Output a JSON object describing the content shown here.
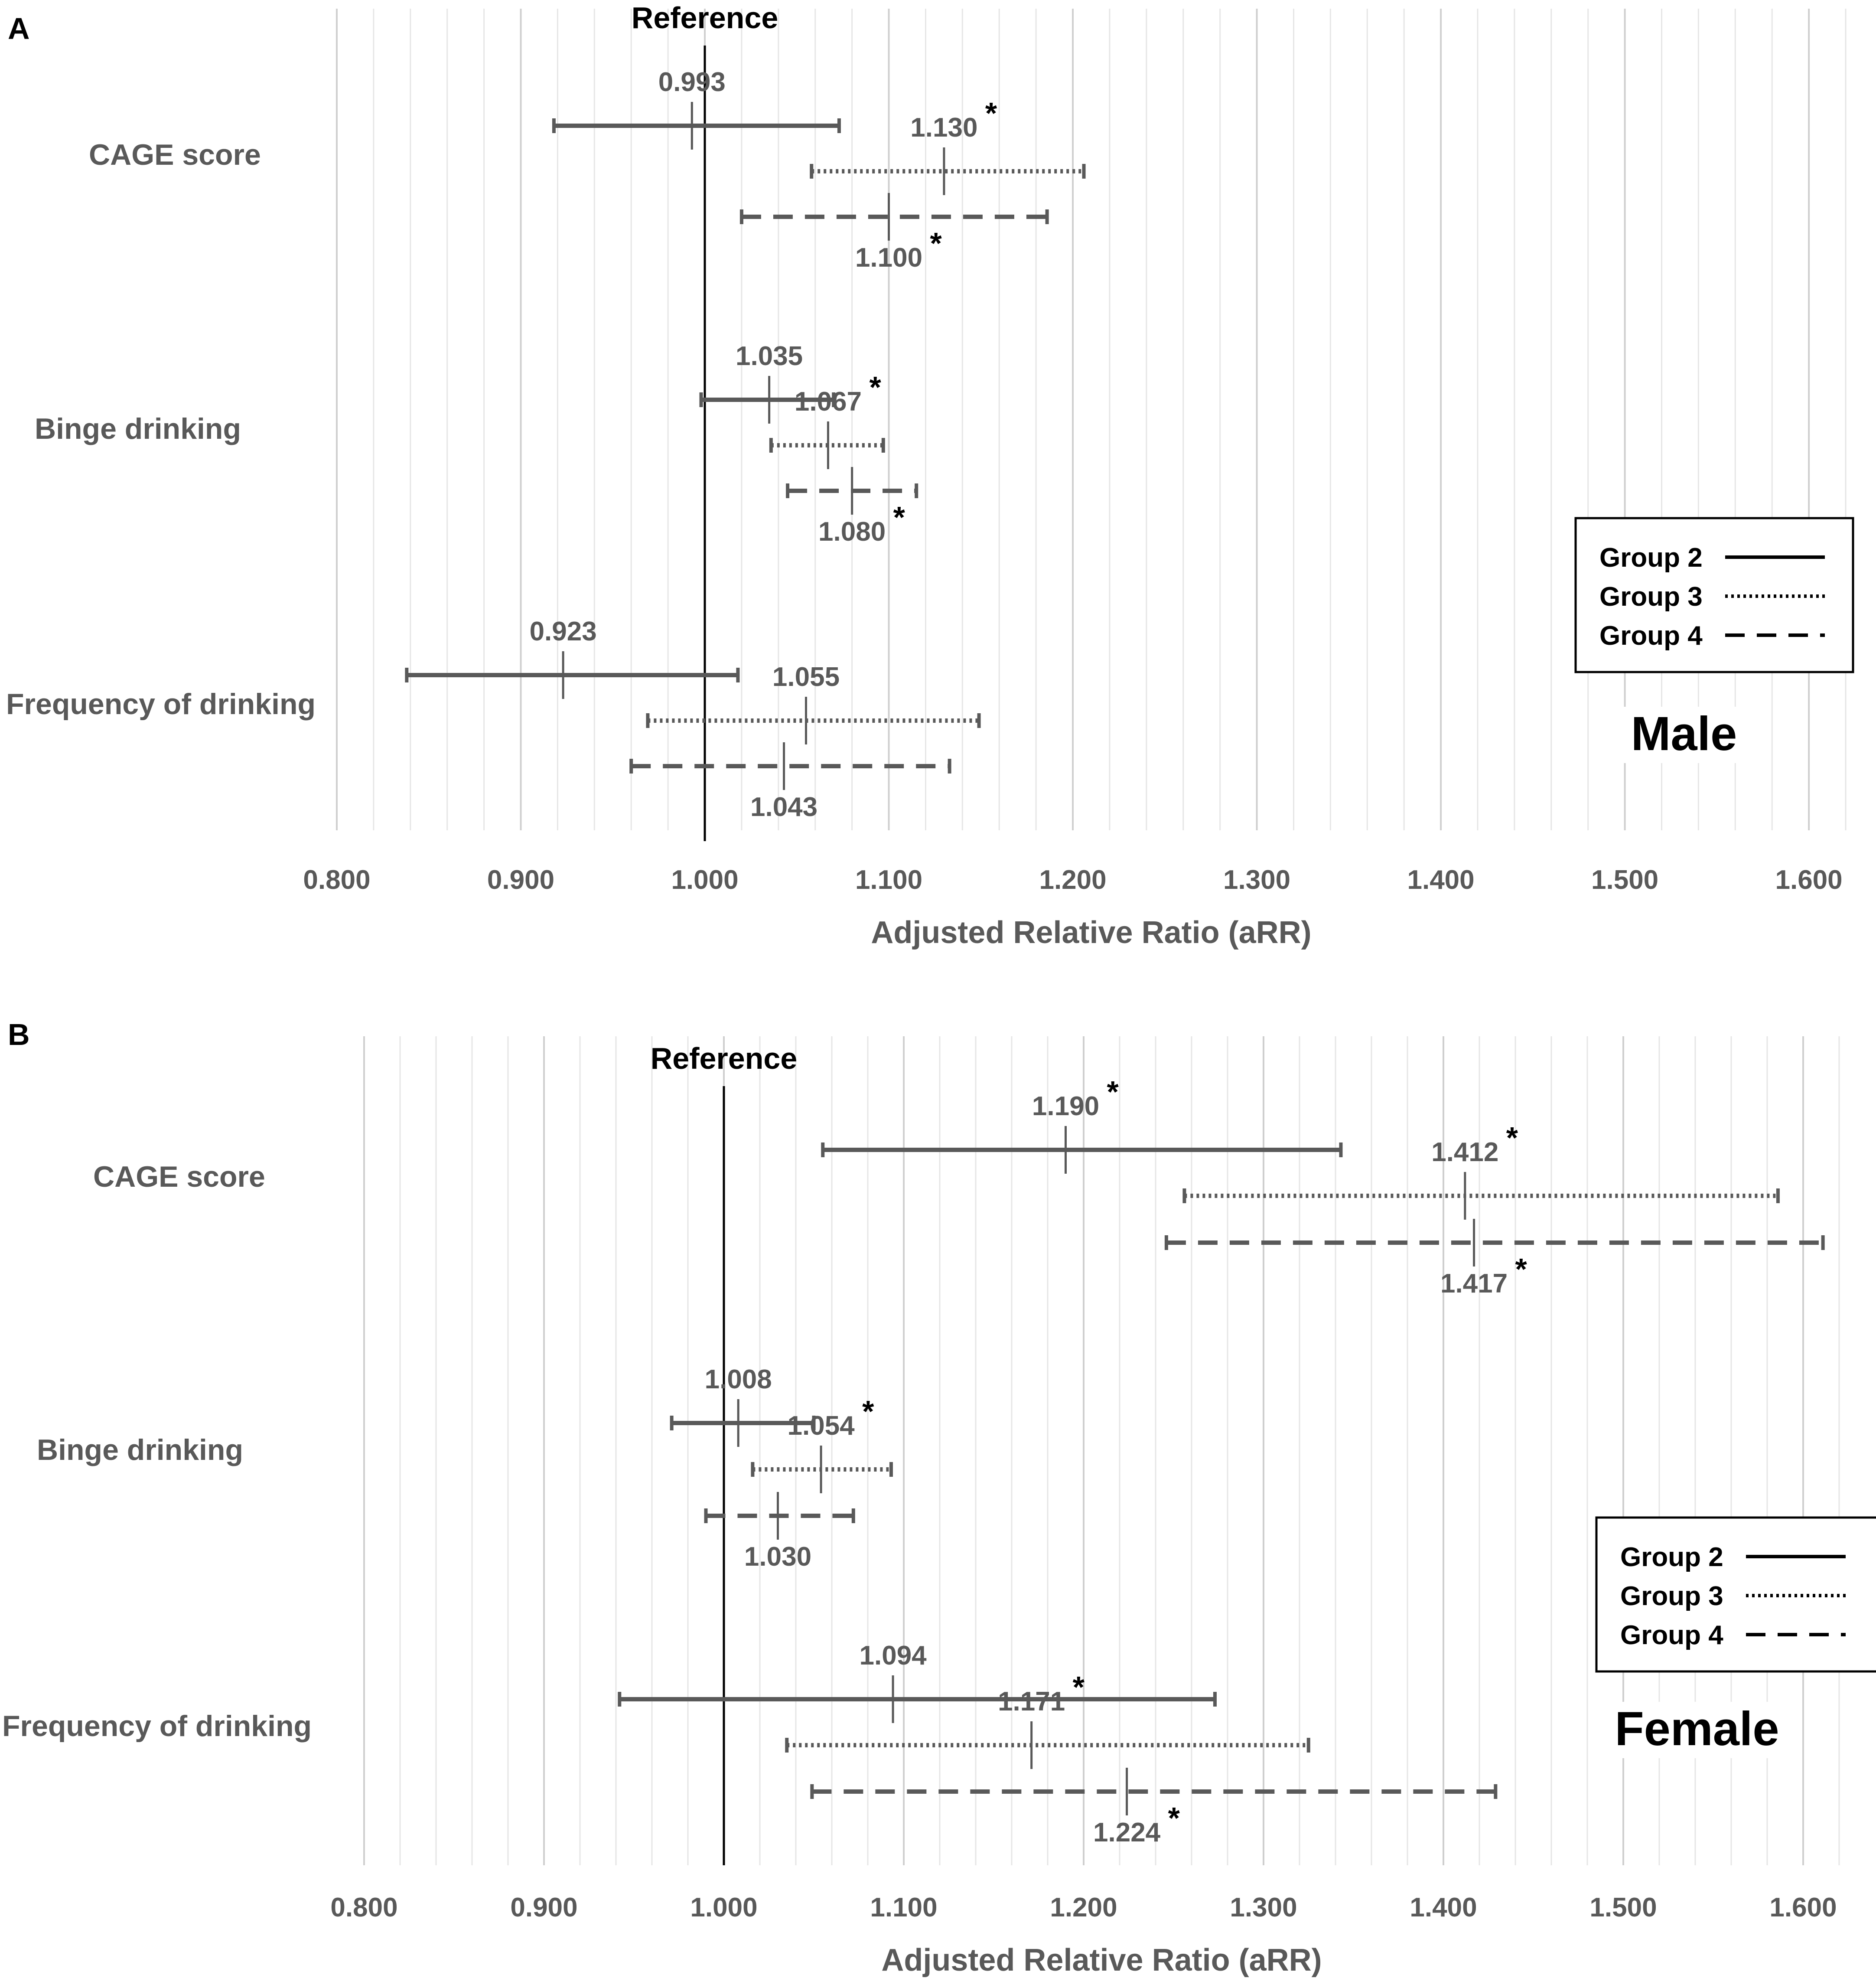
{
  "chart_data": [
    {
      "type": "forest",
      "panel_label": "A",
      "title": "Male",
      "reference_label": "Reference",
      "xlabel": "Adjusted Relative Ratio (aRR)",
      "xlim": [
        0.8,
        1.62
      ],
      "xticks": [
        "0.800",
        "0.900",
        "1.000",
        "1.100",
        "1.200",
        "1.300",
        "1.400",
        "1.500",
        "1.600"
      ],
      "reference_value": 1.0,
      "legend": {
        "position": "right",
        "entries": [
          {
            "label": "Group 2",
            "style": "solid"
          },
          {
            "label": "Group 3",
            "style": "dotted"
          },
          {
            "label": "Group 4",
            "style": "dashed"
          }
        ]
      },
      "categories": [
        "CAGE score",
        "Binge drinking",
        "Frequency of drinking"
      ],
      "series": [
        {
          "name": "Group 2",
          "style": "solid",
          "points": [
            {
              "category": "CAGE score",
              "estimate": 0.993,
              "label": "0.993",
              "ci": [
                0.918,
                1.073
              ],
              "significant": false
            },
            {
              "category": "Binge drinking",
              "estimate": 1.035,
              "label": "1.035",
              "ci": [
                0.998,
                1.07
              ],
              "significant": false
            },
            {
              "category": "Frequency of drinking",
              "estimate": 0.923,
              "label": "0.923",
              "ci": [
                0.838,
                1.018
              ],
              "significant": false
            }
          ]
        },
        {
          "name": "Group 3",
          "style": "dotted",
          "points": [
            {
              "category": "CAGE score",
              "estimate": 1.13,
              "label": "1.130",
              "ci": [
                1.058,
                1.206
              ],
              "significant": true
            },
            {
              "category": "Binge drinking",
              "estimate": 1.067,
              "label": "1.067",
              "ci": [
                1.036,
                1.097
              ],
              "significant": true
            },
            {
              "category": "Frequency of drinking",
              "estimate": 1.055,
              "label": "1.055",
              "ci": [
                0.969,
                1.149
              ],
              "significant": false
            }
          ]
        },
        {
          "name": "Group 4",
          "style": "dashed",
          "points": [
            {
              "category": "CAGE score",
              "estimate": 1.1,
              "label": "1.100",
              "ci": [
                1.02,
                1.186
              ],
              "significant": true
            },
            {
              "category": "Binge drinking",
              "estimate": 1.08,
              "label": "1.080",
              "ci": [
                1.045,
                1.115
              ],
              "significant": true
            },
            {
              "category": "Frequency of drinking",
              "estimate": 1.043,
              "label": "1.043",
              "ci": [
                0.96,
                1.133
              ],
              "significant": false
            }
          ]
        }
      ]
    },
    {
      "type": "forest",
      "panel_label": "B",
      "title": "Female",
      "reference_label": "Reference",
      "xlabel": "Adjusted Relative Ratio (aRR)",
      "xlim": [
        0.8,
        1.62
      ],
      "xticks": [
        "0.800",
        "0.900",
        "1.000",
        "1.100",
        "1.200",
        "1.300",
        "1.400",
        "1.500",
        "1.600"
      ],
      "reference_value": 1.0,
      "legend": {
        "position": "right",
        "entries": [
          {
            "label": "Group 2",
            "style": "solid"
          },
          {
            "label": "Group 3",
            "style": "dotted"
          },
          {
            "label": "Group 4",
            "style": "dashed"
          }
        ]
      },
      "categories": [
        "CAGE score",
        "Binge drinking",
        "Frequency of drinking"
      ],
      "series": [
        {
          "name": "Group 2",
          "style": "solid",
          "points": [
            {
              "category": "CAGE score",
              "estimate": 1.19,
              "label": "1.190",
              "ci": [
                1.055,
                1.343
              ],
              "significant": true
            },
            {
              "category": "Binge drinking",
              "estimate": 1.008,
              "label": "1.008",
              "ci": [
                0.971,
                1.05
              ],
              "significant": false
            },
            {
              "category": "Frequency of drinking",
              "estimate": 1.094,
              "label": "1.094",
              "ci": [
                0.942,
                1.273
              ],
              "significant": false
            }
          ]
        },
        {
          "name": "Group 3",
          "style": "dotted",
          "points": [
            {
              "category": "CAGE score",
              "estimate": 1.412,
              "label": "1.412",
              "ci": [
                1.256,
                1.586
              ],
              "significant": true
            },
            {
              "category": "Binge drinking",
              "estimate": 1.054,
              "label": "1.054",
              "ci": [
                1.016,
                1.093
              ],
              "significant": true
            },
            {
              "category": "Frequency of drinking",
              "estimate": 1.171,
              "label": "1.171",
              "ci": [
                1.035,
                1.325
              ],
              "significant": true
            }
          ]
        },
        {
          "name": "Group 4",
          "style": "dashed",
          "points": [
            {
              "category": "CAGE score",
              "estimate": 1.417,
              "label": "1.417",
              "ci": [
                1.246,
                1.611
              ],
              "significant": true
            },
            {
              "category": "Binge drinking",
              "estimate": 1.03,
              "label": "1.030",
              "ci": [
                0.99,
                1.072
              ],
              "significant": false
            },
            {
              "category": "Frequency of drinking",
              "estimate": 1.224,
              "label": "1.224",
              "ci": [
                1.049,
                1.429
              ],
              "significant": true
            }
          ]
        }
      ]
    }
  ]
}
